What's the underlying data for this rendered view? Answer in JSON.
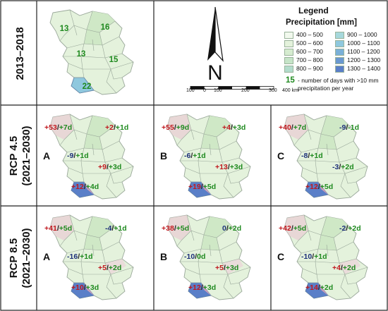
{
  "colors": {
    "positive": "#c0181e",
    "negative": "#1d2f7a",
    "days": "#1f8a1f",
    "region_light": "#e4f2dc",
    "region_mid": "#cfe8c6",
    "region_blue_light": "#8fc8de",
    "region_blue_dark": "#5a7fc8",
    "border": "#9aa89a"
  },
  "row_labels": {
    "r1": "2013–2018",
    "r2_line1": "RCP 4.5",
    "r2_line2": "(2021–2030)",
    "r3_line1": "RCP 8.5",
    "r3_line2": "(2021–2030)"
  },
  "baseline_map": {
    "values": [
      "13",
      "16",
      "13",
      "15",
      "22"
    ]
  },
  "north_arrow": {
    "letter": "N"
  },
  "scale_bar": {
    "ticks": [
      "100",
      "0",
      "100",
      "200",
      "300",
      "400 km"
    ]
  },
  "legend": {
    "title": "Legend",
    "subtitle": "Precipitation [mm]",
    "items": [
      {
        "label": "400 – 500",
        "color": "#f2f9ee"
      },
      {
        "label": "500 – 600",
        "color": "#e4f2dc"
      },
      {
        "label": "600 – 700",
        "color": "#d6ecd0"
      },
      {
        "label": "700 – 800",
        "color": "#c6e4c8"
      },
      {
        "label": "800 – 900",
        "color": "#b3dccc"
      },
      {
        "label": "900 – 1000",
        "color": "#a6d8dc"
      },
      {
        "label": "1000 – 1100",
        "color": "#8fc8de"
      },
      {
        "label": "1100 – 1200",
        "color": "#7ab0d8"
      },
      {
        "label": "1200 – 1300",
        "color": "#6a98d0"
      },
      {
        "label": "1300 – 1400",
        "color": "#5a7fc8"
      }
    ],
    "note_number": "15",
    "note_text": "- number of days with >10 mm precipitation per year"
  },
  "scenarios": [
    {
      "row": "rcp45",
      "panels": [
        {
          "letter": "A",
          "annotations": [
            {
              "p": "+53",
              "d": "+7d"
            },
            {
              "p": "+2",
              "d": "+1d"
            },
            {
              "p": "-9",
              "d": "+1d"
            },
            {
              "p": "+9",
              "d": "+3d"
            },
            {
              "p": "+12",
              "d": "+4d"
            }
          ]
        },
        {
          "letter": "B",
          "annotations": [
            {
              "p": "+55",
              "d": "+9d"
            },
            {
              "p": "+4",
              "d": "+3d"
            },
            {
              "p": "-6",
              "d": "+1d"
            },
            {
              "p": "+13",
              "d": "+3d"
            },
            {
              "p": "+19",
              "d": "+5d"
            }
          ]
        },
        {
          "letter": "C",
          "annotations": [
            {
              "p": "+40",
              "d": "+7d"
            },
            {
              "p": "-9",
              "d": "-1d"
            },
            {
              "p": "-8",
              "d": "+1d"
            },
            {
              "p": "-3",
              "d": "+2d"
            },
            {
              "p": "+12",
              "d": "+5d"
            }
          ]
        }
      ]
    },
    {
      "row": "rcp85",
      "panels": [
        {
          "letter": "A",
          "annotations": [
            {
              "p": "+41",
              "d": "+5d"
            },
            {
              "p": "-4",
              "d": "+1d"
            },
            {
              "p": "-16",
              "d": "+1d"
            },
            {
              "p": "+5",
              "d": "+2d"
            },
            {
              "p": "+10",
              "d": "+3d"
            }
          ]
        },
        {
          "letter": "B",
          "annotations": [
            {
              "p": "+38",
              "d": "+5d"
            },
            {
              "p": "0",
              "d": "+2d"
            },
            {
              "p": "-10",
              "d": "0d"
            },
            {
              "p": "+5",
              "d": "+3d"
            },
            {
              "p": "+12",
              "d": "+3d"
            }
          ]
        },
        {
          "letter": "C",
          "annotations": [
            {
              "p": "+42",
              "d": "+5d"
            },
            {
              "p": "-2",
              "d": "+2d"
            },
            {
              "p": "-10",
              "d": "+1d"
            },
            {
              "p": "+4",
              "d": "+2d"
            },
            {
              "p": "+14",
              "d": "+2d"
            }
          ]
        }
      ]
    }
  ]
}
